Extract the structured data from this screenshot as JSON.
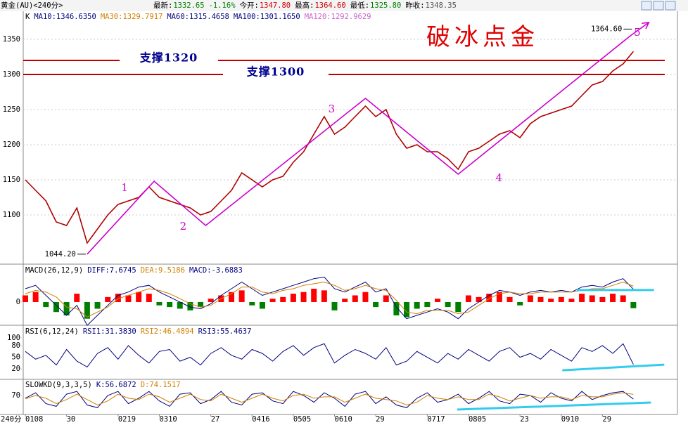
{
  "header": {
    "title": "黄金(AU)<240分>",
    "quote": [
      {
        "text": "最新:",
        "color": "#000000"
      },
      {
        "text": "1332.65",
        "color": "#008000"
      },
      {
        "text": "-1.16%",
        "color": "#008000"
      },
      {
        "text": "今开:",
        "color": "#000000"
      },
      {
        "text": "1347.80",
        "color": "#d00000"
      },
      {
        "text": "最高:",
        "color": "#000000"
      },
      {
        "text": "1364.60",
        "color": "#d00000"
      },
      {
        "text": "最低:",
        "color": "#000000"
      },
      {
        "text": "1325.80",
        "color": "#008000"
      },
      {
        "text": "昨收:",
        "color": "#000000"
      },
      {
        "text": "1348.35",
        "color": "#555555"
      }
    ]
  },
  "chart_data": [
    {
      "type": "line",
      "title": "破冰点金",
      "legend": [
        {
          "text": "K",
          "color": "#000000"
        },
        {
          "text": "MA10:1346.6350",
          "color": "#000080"
        },
        {
          "text": "MA30:1329.7917",
          "color": "#d08000"
        },
        {
          "text": "MA60:1315.4658",
          "color": "#000080"
        },
        {
          "text": "MA100:1301.1650",
          "color": "#000080"
        },
        {
          "text": "MA120:1292.9629",
          "color": "#cc66cc"
        }
      ],
      "ylim": [
        1030,
        1390
      ],
      "yticks": [
        1100,
        1150,
        1200,
        1250,
        1300,
        1350
      ],
      "grid": true,
      "series": [
        {
          "color": "#b00000",
          "values": [
            1150,
            1135,
            1120,
            1090,
            1085,
            1110,
            1060,
            1080,
            1100,
            1115,
            1120,
            1125,
            1140,
            1125,
            1120,
            1115,
            1110,
            1100,
            1105,
            1120,
            1135,
            1160,
            1150,
            1140,
            1150,
            1155,
            1175,
            1190,
            1215,
            1240,
            1215,
            1225,
            1240,
            1255,
            1240,
            1250,
            1215,
            1195,
            1200,
            1190,
            1190,
            1180,
            1165,
            1190,
            1195,
            1205,
            1215,
            1220,
            1210,
            1230,
            1240,
            1245,
            1250,
            1255,
            1270,
            1285,
            1290,
            1305,
            1315,
            1332.65
          ]
        }
      ],
      "supports": [
        {
          "label": "支撑1320",
          "value": 1320,
          "color": "#c00000"
        },
        {
          "label": "支撑1300",
          "value": 1300,
          "color": "#c00000"
        }
      ],
      "wave": {
        "color": "#cc00cc",
        "points": [
          {
            "x": 6,
            "value": 1044.2
          },
          {
            "x": 12.5,
            "value": 1148,
            "label": "1"
          },
          {
            "x": 17.5,
            "value": 1085,
            "label": "2"
          },
          {
            "x": 33,
            "value": 1266,
            "label": "3"
          },
          {
            "x": 42,
            "value": 1158,
            "label": "4"
          },
          {
            "x": 58.7,
            "value": 1355,
            "label": "5"
          },
          {
            "x": 60.5,
            "value": 1374
          }
        ]
      },
      "price_labels": [
        {
          "text": "1044.20",
          "value": 1044.2,
          "x": 6
        },
        {
          "text": "1364.60",
          "value": 1364.6,
          "x": 59
        }
      ]
    },
    {
      "type": "bar",
      "legend": [
        {
          "text": "MACD(26,12,9)",
          "color": "#000000"
        },
        {
          "text": "DIFF:7.6745",
          "color": "#000080"
        },
        {
          "text": "DEA:9.5186",
          "color": "#d08000"
        },
        {
          "text": "MACD:-3.6883",
          "color": "#000080"
        }
      ],
      "ylim": [
        -13.5,
        16
      ],
      "yticks": [
        0
      ],
      "colors": {
        "up": "#ff0000",
        "down": "#008000"
      },
      "values": [
        4,
        6,
        -3,
        -6,
        -8,
        5,
        -10,
        -4,
        3,
        5,
        4,
        6,
        5,
        -2,
        -3,
        -4,
        -5,
        -3,
        2,
        4,
        6,
        7,
        -2,
        -4,
        2,
        3,
        5,
        6,
        8,
        7,
        -5,
        2,
        4,
        6,
        -3,
        4,
        -8,
        -9,
        -4,
        -3,
        2,
        -3,
        -6,
        4,
        3,
        5,
        6,
        3,
        -2,
        4,
        3,
        2,
        3,
        2,
        5,
        4,
        3,
        5,
        4,
        -3.6883
      ],
      "series": [
        {
          "name": "DIFF",
          "color": "#000080",
          "values": [
            8,
            10,
            4,
            -2,
            -8,
            -2,
            -14,
            -8,
            -2,
            4,
            6,
            9,
            10,
            6,
            3,
            0,
            -3,
            -4,
            -1,
            4,
            8,
            12,
            8,
            4,
            6,
            8,
            10,
            12,
            14,
            15,
            8,
            6,
            9,
            12,
            6,
            8,
            -3,
            -10,
            -8,
            -6,
            -4,
            -6,
            -10,
            -4,
            0,
            4,
            7,
            6,
            4,
            6,
            7,
            6,
            7,
            6,
            9,
            10,
            9,
            12,
            14,
            7.6745
          ]
        },
        {
          "name": "DEA",
          "color": "#d08000",
          "values": [
            5,
            7,
            6,
            3,
            -3,
            -4,
            -9,
            -6,
            -3,
            2,
            4,
            6,
            8,
            7,
            5,
            2,
            -1,
            -3,
            -2,
            2,
            5,
            9,
            9,
            6,
            5,
            7,
            8,
            10,
            11,
            12,
            10,
            7,
            8,
            10,
            8,
            7,
            1,
            -6,
            -7,
            -5,
            -5,
            -5,
            -7,
            -6,
            -2,
            2,
            5,
            6,
            5,
            5,
            6,
            6,
            6,
            6,
            7,
            8,
            8,
            10,
            12,
            9.5186
          ]
        }
      ],
      "trendlines": [
        {
          "x": [
            53.5,
            61
          ],
          "values": [
            7.2,
            7.2
          ],
          "color": "#33ccee"
        }
      ]
    },
    {
      "type": "line",
      "legend": [
        {
          "text": "RSI(6,12,24)",
          "color": "#000000"
        },
        {
          "text": "RSI1:31.3830",
          "color": "#000080"
        },
        {
          "text": "RSI2:46.4894",
          "color": "#d08000"
        },
        {
          "text": "RSI3:55.4637",
          "color": "#000080"
        }
      ],
      "ylim": [
        -7,
        129
      ],
      "yticks": [
        20,
        50,
        80,
        100
      ],
      "series": [
        {
          "name": "RSI1",
          "color": "#000080",
          "values": [
            65,
            45,
            55,
            30,
            70,
            40,
            25,
            60,
            75,
            45,
            80,
            55,
            35,
            65,
            70,
            40,
            50,
            30,
            60,
            75,
            55,
            45,
            70,
            60,
            40,
            65,
            80,
            55,
            75,
            85,
            35,
            55,
            70,
            60,
            45,
            75,
            30,
            40,
            65,
            50,
            35,
            60,
            45,
            70,
            55,
            40,
            65,
            75,
            50,
            60,
            45,
            70,
            55,
            40,
            75,
            65,
            80,
            60,
            85,
            31.383
          ]
        }
      ],
      "trendlines": [
        {
          "x": [
            52.1,
            62
          ],
          "values": [
            16.4,
            30.9
          ],
          "color": "#33ccee"
        }
      ]
    },
    {
      "type": "line",
      "legend": [
        {
          "text": "SLOWKD(9,3,3,5)",
          "color": "#000000"
        },
        {
          "text": "K:56.6872",
          "color": "#000080"
        },
        {
          "text": "D:74.1517",
          "color": "#d08000"
        }
      ],
      "ylim": [
        0,
        127
      ],
      "yticks": [
        70
      ],
      "period_label": "240分",
      "categories": [
        "0108",
        null,
        null,
        null,
        "30",
        null,
        null,
        null,
        null,
        "0219",
        null,
        null,
        null,
        "0310",
        null,
        null,
        null,
        null,
        "27",
        null,
        null,
        null,
        "0416",
        null,
        null,
        null,
        "0505",
        null,
        null,
        null,
        "0610",
        null,
        null,
        null,
        "29",
        null,
        null,
        null,
        null,
        "0717",
        null,
        null,
        null,
        "0805",
        null,
        null,
        null,
        null,
        "23",
        null,
        null,
        null,
        "0910",
        null,
        null,
        null,
        "29",
        null,
        null,
        null
      ],
      "series": [
        {
          "name": "K",
          "color": "#000080",
          "values": [
            60,
            80,
            40,
            30,
            75,
            85,
            35,
            25,
            70,
            85,
            40,
            60,
            85,
            50,
            30,
            75,
            80,
            40,
            55,
            85,
            45,
            35,
            75,
            80,
            50,
            40,
            85,
            70,
            45,
            80,
            60,
            30,
            75,
            85,
            40,
            65,
            35,
            25,
            60,
            80,
            45,
            55,
            75,
            40,
            60,
            85,
            50,
            40,
            75,
            70,
            45,
            80,
            60,
            50,
            85,
            55,
            70,
            80,
            85,
            56.6872
          ]
        },
        {
          "name": "D",
          "color": "#d08000",
          "values": [
            58,
            70,
            60,
            40,
            55,
            75,
            55,
            35,
            50,
            75,
            60,
            55,
            75,
            65,
            45,
            60,
            75,
            55,
            50,
            75,
            60,
            45,
            60,
            75,
            60,
            50,
            70,
            75,
            60,
            65,
            65,
            45,
            60,
            75,
            60,
            55,
            50,
            35,
            45,
            70,
            60,
            55,
            65,
            55,
            55,
            75,
            65,
            50,
            60,
            70,
            60,
            65,
            65,
            55,
            70,
            65,
            65,
            75,
            80,
            74.1517
          ]
        }
      ],
      "trendlines": [
        {
          "x": [
            41.9,
            60.7
          ],
          "values": [
            18,
            44
          ],
          "color": "#33ccee"
        }
      ]
    }
  ]
}
